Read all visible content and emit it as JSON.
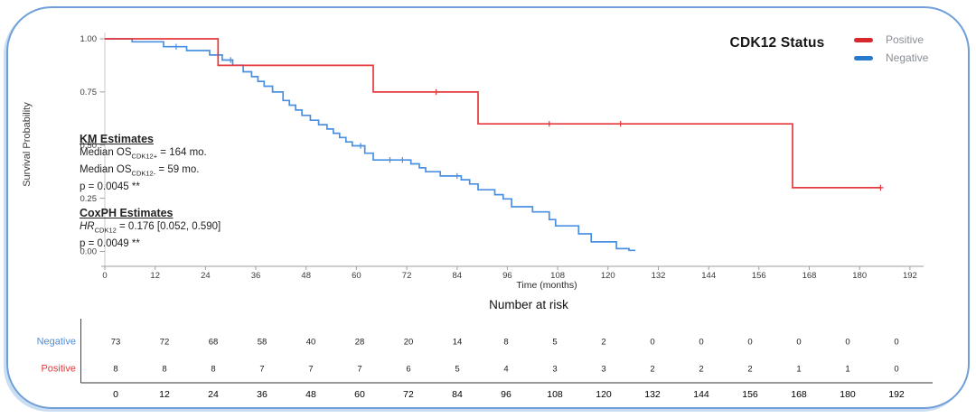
{
  "frame": {
    "border_color": "#6f9fd9",
    "shadow_color": "#9ec1e7"
  },
  "chart_data": {
    "type": "line",
    "subtype": "kaplan-meier-step",
    "title": "CDK12 Status",
    "xlabel": "Time (months)",
    "ylabel": "Survival Probability",
    "xlim": [
      0,
      192
    ],
    "ylim": [
      0,
      1
    ],
    "grid": false,
    "xticks": [
      0,
      12,
      24,
      36,
      48,
      60,
      72,
      84,
      96,
      108,
      120,
      132,
      144,
      156,
      168,
      180,
      192
    ],
    "ytick_labels": [
      "0.00",
      "0.25",
      "0.50",
      "0.75",
      "1.00"
    ],
    "yticks": [
      0,
      0.25,
      0.5,
      0.75,
      1.0
    ],
    "legend": {
      "position": "top-right",
      "title": "CDK12 Status",
      "items": [
        {
          "label": "Positive",
          "color": "#D7282C"
        },
        {
          "label": "Negative",
          "color": "#2779CE"
        }
      ]
    },
    "series": [
      {
        "name": "Negative",
        "color": "#4A90E2",
        "steps": [
          [
            0,
            1.0
          ],
          [
            6.5,
            0.986
          ],
          [
            14,
            0.963
          ],
          [
            19.5,
            0.945
          ],
          [
            25,
            0.924
          ],
          [
            28,
            0.9
          ],
          [
            30.5,
            0.876
          ],
          [
            33,
            0.845
          ],
          [
            35,
            0.822
          ],
          [
            36.5,
            0.8
          ],
          [
            38,
            0.777
          ],
          [
            40,
            0.75
          ],
          [
            42.5,
            0.71
          ],
          [
            44,
            0.688
          ],
          [
            45.5,
            0.665
          ],
          [
            47,
            0.64
          ],
          [
            49,
            0.617
          ],
          [
            51,
            0.596
          ],
          [
            53,
            0.576
          ],
          [
            54.5,
            0.556
          ],
          [
            56,
            0.536
          ],
          [
            57.5,
            0.515
          ],
          [
            59,
            0.497
          ],
          [
            62,
            0.462
          ],
          [
            64,
            0.43
          ],
          [
            73,
            0.412
          ],
          [
            75,
            0.393
          ],
          [
            76.5,
            0.375
          ],
          [
            80,
            0.355
          ],
          [
            85,
            0.337
          ],
          [
            87,
            0.317
          ],
          [
            89,
            0.29
          ],
          [
            93,
            0.267
          ],
          [
            95,
            0.247
          ],
          [
            97,
            0.21
          ],
          [
            102,
            0.186
          ],
          [
            106,
            0.15
          ],
          [
            107.5,
            0.12
          ],
          [
            113,
            0.083
          ],
          [
            116,
            0.045
          ],
          [
            122,
            0.013
          ],
          [
            125,
            0.005
          ]
        ],
        "end_time": 126.5,
        "censor_times": [
          17,
          30,
          61,
          68,
          71,
          84
        ]
      },
      {
        "name": "Positive",
        "color": "#E5383B",
        "steps": [
          [
            0,
            1.0
          ],
          [
            27,
            0.875
          ],
          [
            64,
            0.75
          ],
          [
            89,
            0.6
          ],
          [
            164,
            0.3
          ]
        ],
        "end_time": 185,
        "censor_times": [
          79,
          106,
          123,
          185
        ]
      }
    ],
    "annotations": {
      "km": {
        "heading": "KM Estimates",
        "lines": [
          {
            "pre": "Median OS",
            "sub": "CDK12+",
            "post": " = 164 mo.",
            "italic_pre": false
          },
          {
            "pre": "Median OS",
            "sub": "CDK12-",
            "post": " = 59 mo.",
            "italic_pre": false
          },
          {
            "pre": "p = 0.0045 **",
            "sub": "",
            "post": "",
            "italic_pre": false
          }
        ]
      },
      "coxph": {
        "heading": "CoxPH Estimates",
        "lines": [
          {
            "pre": "HR",
            "sub": "CDK12",
            "post": " = 0.176 [0.052, 0.590]",
            "italic_pre": true
          },
          {
            "pre": "p = 0.0049 **",
            "sub": "",
            "post": "",
            "italic_pre": false
          }
        ]
      }
    },
    "risk_table": {
      "title": "Number at risk",
      "times": [
        0,
        12,
        24,
        36,
        48,
        60,
        72,
        84,
        96,
        108,
        120,
        132,
        144,
        156,
        168,
        180,
        192
      ],
      "rows": [
        {
          "name": "Negative",
          "color": "#4A90E2",
          "values": [
            73,
            72,
            68,
            58,
            40,
            28,
            20,
            14,
            8,
            5,
            2,
            0,
            0,
            0,
            0,
            0,
            0
          ]
        },
        {
          "name": "Positive",
          "color": "#E5383B",
          "values": [
            8,
            8,
            8,
            7,
            7,
            7,
            6,
            5,
            4,
            3,
            3,
            2,
            2,
            2,
            1,
            1,
            0
          ]
        }
      ]
    }
  }
}
